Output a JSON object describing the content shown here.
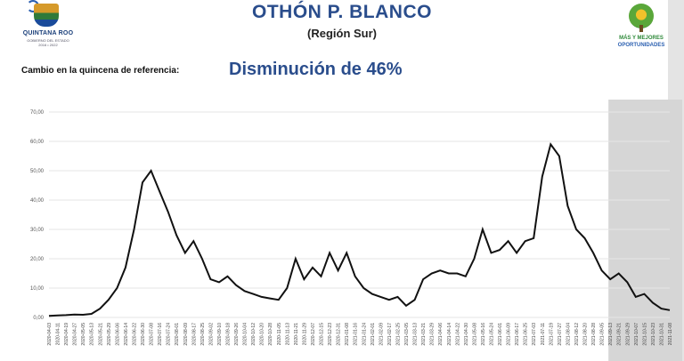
{
  "header": {
    "title": "OTHÓN P. BLANCO",
    "subtitle": "(Región Sur)",
    "left_logo": {
      "name": "QUINTANA ROO",
      "sub": "GOBIERNO DEL ESTADO",
      "years": "2016 • 2022"
    },
    "right_logo": {
      "line1": "MÁS Y MEJORES",
      "line2": "OPORTUNIDADES"
    }
  },
  "summary": {
    "label": "Cambio en la quincena de referencia:",
    "value": "Disminución de 46%"
  },
  "colors": {
    "line": "#111111",
    "title": "#2a4d8c",
    "highlight_band": "#d6d6d6",
    "grid": "#e6e6e6"
  },
  "chart_data": {
    "type": "line",
    "ylim": [
      0,
      70
    ],
    "yticks": [
      "0,00",
      "10,00",
      "20,00",
      "30,00",
      "40,00",
      "50,00",
      "60,00",
      "70,00"
    ],
    "highlight_last_x": 7,
    "x": [
      "2020-04-03",
      "2020-04-11",
      "2020-04-19",
      "2020-04-27",
      "2020-05-05",
      "2020-05-13",
      "2020-05-21",
      "2020-05-29",
      "2020-06-06",
      "2020-06-14",
      "2020-06-22",
      "2020-06-30",
      "2020-07-08",
      "2020-07-16",
      "2020-07-24",
      "2020-08-01",
      "2020-08-09",
      "2020-08-17",
      "2020-08-25",
      "2020-09-02",
      "2020-09-10",
      "2020-09-18",
      "2020-09-26",
      "2020-10-04",
      "2020-10-12",
      "2020-10-20",
      "2020-10-28",
      "2020-11-05",
      "2020-11-13",
      "2020-11-21",
      "2020-11-29",
      "2020-12-07",
      "2020-12-15",
      "2020-12-23",
      "2020-12-31",
      "2021-01-08",
      "2021-01-16",
      "2021-01-24",
      "2021-02-01",
      "2021-02-09",
      "2021-02-17",
      "2021-02-25",
      "2021-03-05",
      "2021-03-13",
      "2021-03-21",
      "2021-03-29",
      "2021-04-06",
      "2021-04-14",
      "2021-04-22",
      "2021-04-30",
      "2021-05-08",
      "2021-05-16",
      "2021-05-24",
      "2021-06-01",
      "2021-06-09",
      "2021-06-17",
      "2021-06-25",
      "2021-07-03",
      "2021-07-11",
      "2021-07-19",
      "2021-07-27",
      "2021-08-04",
      "2021-08-12",
      "2021-08-20",
      "2021-08-28",
      "2021-09-05",
      "2021-09-13",
      "2021-09-21",
      "2021-09-29",
      "2021-10-07",
      "2021-10-15",
      "2021-10-23",
      "2021-10-31",
      "2021-11-08"
    ],
    "values": [
      0.5,
      0.7,
      0.8,
      1.0,
      0.9,
      1.2,
      3.0,
      6.0,
      10.0,
      17.0,
      30.0,
      46.0,
      50.0,
      43.0,
      36.0,
      28.0,
      22.0,
      26.0,
      20.0,
      13.0,
      12.0,
      14.0,
      11.0,
      9.0,
      8.0,
      7.0,
      6.5,
      6.0,
      10.0,
      20.0,
      13.0,
      17.0,
      14.0,
      22.0,
      16.0,
      22.0,
      14.0,
      10.0,
      8.0,
      7.0,
      6.0,
      7.0,
      4.0,
      6.0,
      13.0,
      15.0,
      16.0,
      15.0,
      15.0,
      14.0,
      20.0,
      30.0,
      22.0,
      23.0,
      26.0,
      22.0,
      26.0,
      27.0,
      48.0,
      59.0,
      55.0,
      38.0,
      30.0,
      27.0,
      22.0,
      16.0,
      13.0,
      15.0,
      12.0,
      7.0,
      8.0,
      5.0,
      3.0,
      2.5
    ]
  }
}
